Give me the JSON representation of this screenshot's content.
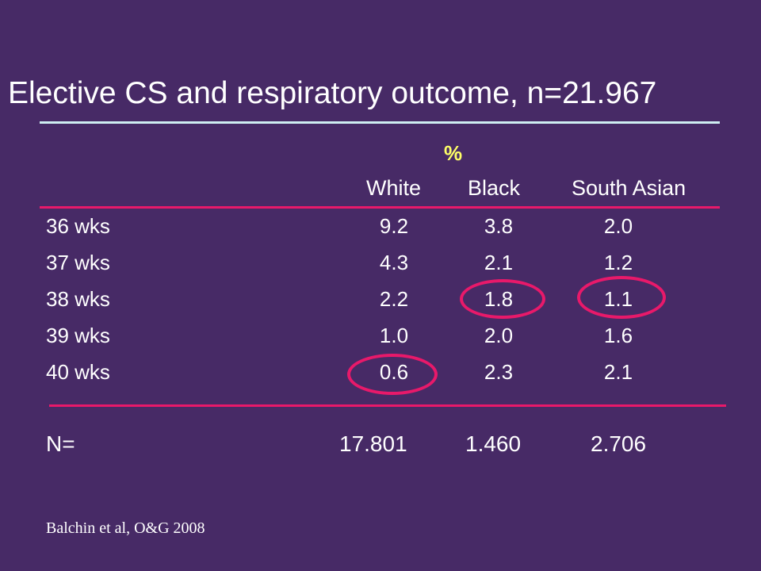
{
  "slide": {
    "title": "Elective CS and respiratory outcome, n=21.967",
    "unit_label": "%",
    "columns": [
      "White",
      "Black",
      "South Asian"
    ],
    "rows": [
      {
        "label": "36 wks",
        "values": [
          "9.2",
          "3.8",
          "2.0"
        ]
      },
      {
        "label": "37 wks",
        "values": [
          "4.3",
          "2.1",
          "1.2"
        ]
      },
      {
        "label": "38 wks",
        "values": [
          "2.2",
          "1.8",
          "1.1"
        ]
      },
      {
        "label": "39 wks",
        "values": [
          "1.0",
          "2.0",
          "1.6"
        ]
      },
      {
        "label": "40 wks",
        "values": [
          "0.6",
          "2.3",
          "2.1"
        ]
      }
    ],
    "totals": {
      "label": "N=",
      "values": [
        "17.801",
        "1.460",
        "2.706"
      ]
    },
    "source": "Balchin et al, O&G 2008",
    "colors": {
      "background": "#472a66",
      "accent": "#e8196a",
      "title_rule": "#cfeef2",
      "unit_label": "#ffff66"
    }
  }
}
